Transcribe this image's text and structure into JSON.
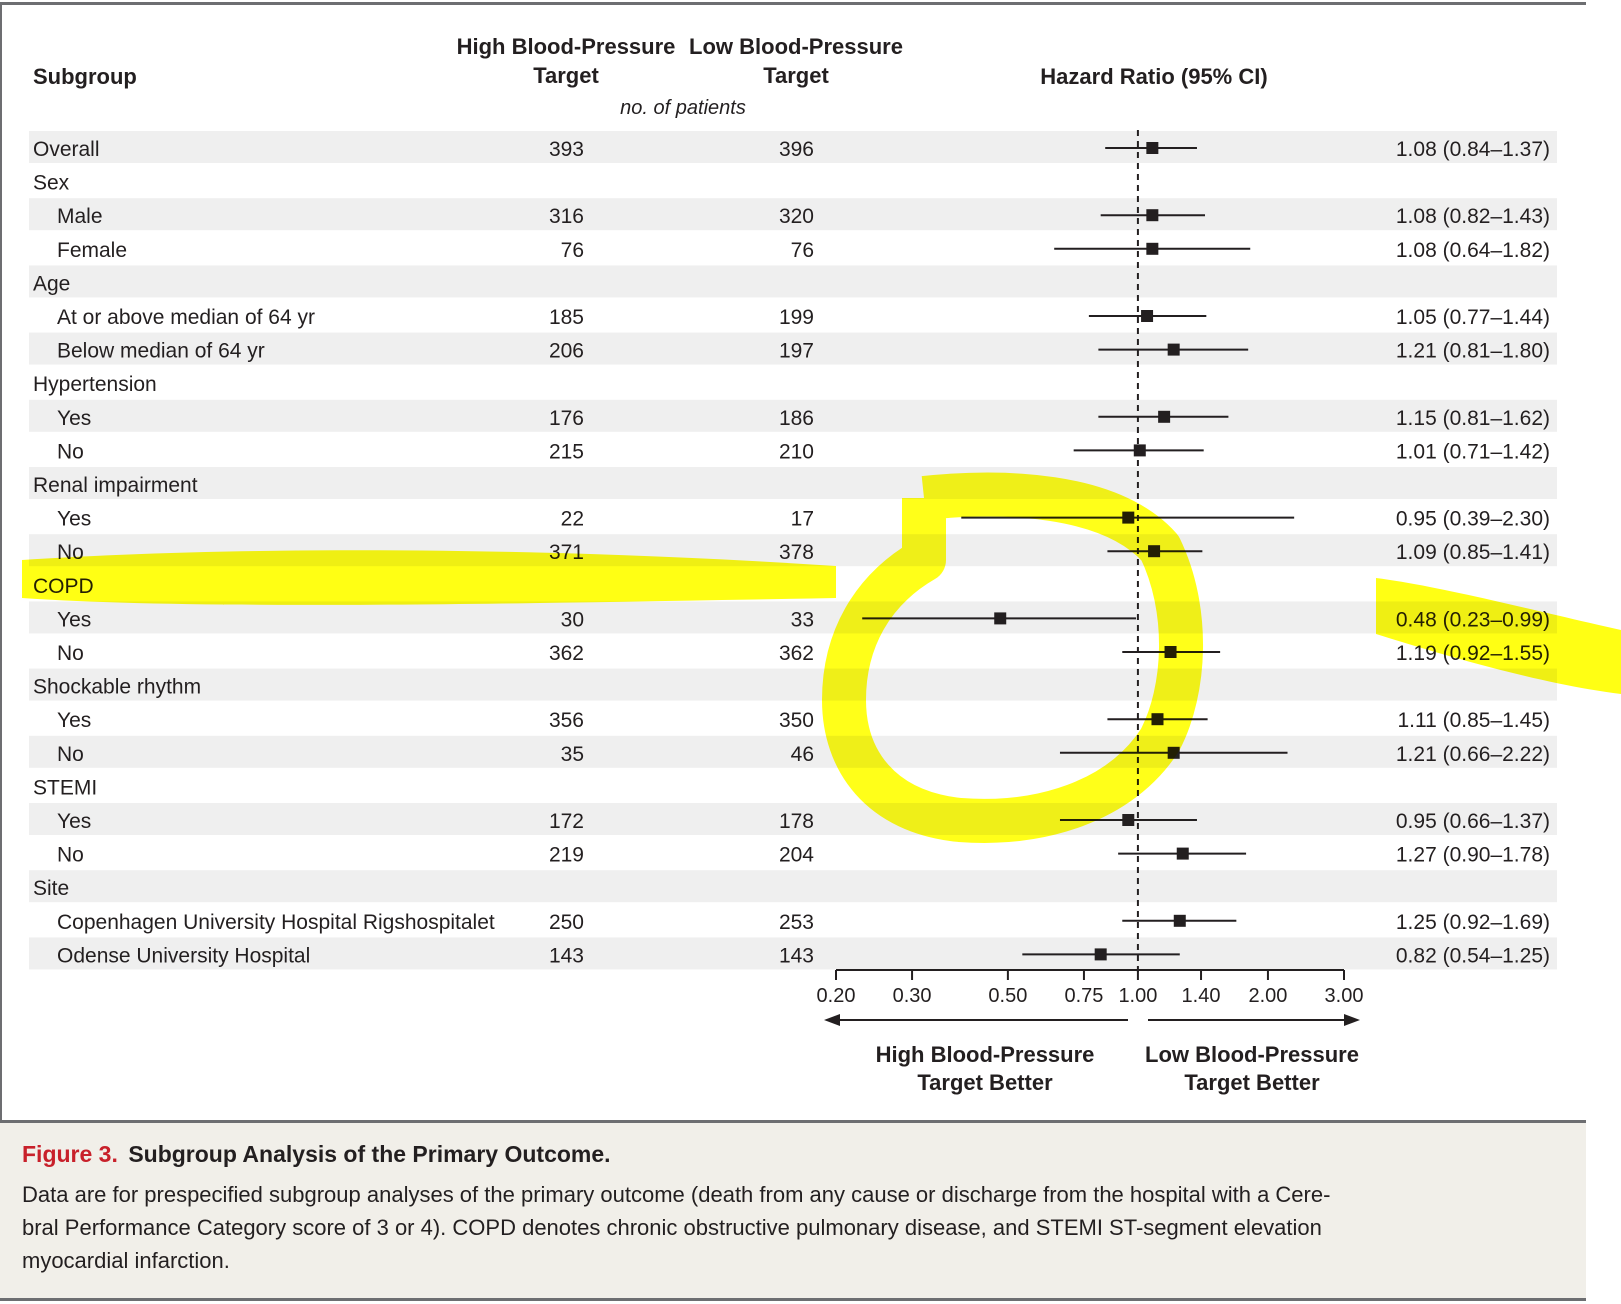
{
  "headers": {
    "subgroup": "Subgroup",
    "high_line1": "High Blood-Pressure",
    "high_line2": "Target",
    "low_line1": "Low Blood-Pressure",
    "low_line2": "Target",
    "patients_note": "no. of patients",
    "hr": "Hazard Ratio (95% CI)"
  },
  "chart_data": {
    "type": "forest",
    "x_scale": "log",
    "xlim": [
      0.2,
      3.0
    ],
    "reference_line": 1.0,
    "x_ticks": [
      "0.20",
      "0.30",
      "0.50",
      "0.75",
      "1.00",
      "1.40",
      "2.00",
      "3.00"
    ],
    "x_tick_values": [
      0.2,
      0.3,
      0.5,
      0.75,
      1.0,
      1.4,
      2.0,
      3.0
    ],
    "direction_left": [
      "High Blood-Pressure",
      "Target Better"
    ],
    "direction_right": [
      "Low Blood-Pressure",
      "Target Better"
    ],
    "rows": [
      {
        "label": "Overall",
        "indent": 0,
        "high_n": "393",
        "low_n": "396",
        "hr": 1.08,
        "lo": 0.84,
        "hi": 1.37,
        "ci_text": "1.08 (0.84–1.37)"
      },
      {
        "label": "Sex",
        "indent": 0
      },
      {
        "label": "Male",
        "indent": 1,
        "high_n": "316",
        "low_n": "320",
        "hr": 1.08,
        "lo": 0.82,
        "hi": 1.43,
        "ci_text": "1.08 (0.82–1.43)"
      },
      {
        "label": "Female",
        "indent": 1,
        "high_n": "76",
        "low_n": "76",
        "hr": 1.08,
        "lo": 0.64,
        "hi": 1.82,
        "ci_text": "1.08 (0.64–1.82)"
      },
      {
        "label": "Age",
        "indent": 0
      },
      {
        "label": "At or above median of 64 yr",
        "indent": 1,
        "high_n": "185",
        "low_n": "199",
        "hr": 1.05,
        "lo": 0.77,
        "hi": 1.44,
        "ci_text": "1.05 (0.77–1.44)"
      },
      {
        "label": "Below median of 64 yr",
        "indent": 1,
        "high_n": "206",
        "low_n": "197",
        "hr": 1.21,
        "lo": 0.81,
        "hi": 1.8,
        "ci_text": "1.21 (0.81–1.80)"
      },
      {
        "label": "Hypertension",
        "indent": 0
      },
      {
        "label": "Yes",
        "indent": 1,
        "high_n": "176",
        "low_n": "186",
        "hr": 1.15,
        "lo": 0.81,
        "hi": 1.62,
        "ci_text": "1.15 (0.81–1.62)"
      },
      {
        "label": "No",
        "indent": 1,
        "high_n": "215",
        "low_n": "210",
        "hr": 1.01,
        "lo": 0.71,
        "hi": 1.42,
        "ci_text": "1.01 (0.71–1.42)"
      },
      {
        "label": "Renal impairment",
        "indent": 0
      },
      {
        "label": "Yes",
        "indent": 1,
        "high_n": "22",
        "low_n": "17",
        "hr": 0.95,
        "lo": 0.39,
        "hi": 2.3,
        "ci_text": "0.95 (0.39–2.30)"
      },
      {
        "label": "No",
        "indent": 1,
        "high_n": "371",
        "low_n": "378",
        "hr": 1.09,
        "lo": 0.85,
        "hi": 1.41,
        "ci_text": "1.09 (0.85–1.41)"
      },
      {
        "label": "COPD",
        "indent": 0
      },
      {
        "label": "Yes",
        "indent": 1,
        "high_n": "30",
        "low_n": "33",
        "hr": 0.48,
        "lo": 0.23,
        "hi": 0.99,
        "ci_text": "0.48 (0.23–0.99)"
      },
      {
        "label": "No",
        "indent": 1,
        "high_n": "362",
        "low_n": "362",
        "hr": 1.19,
        "lo": 0.92,
        "hi": 1.55,
        "ci_text": "1.19 (0.92–1.55)"
      },
      {
        "label": "Shockable rhythm",
        "indent": 0
      },
      {
        "label": "Yes",
        "indent": 1,
        "high_n": "356",
        "low_n": "350",
        "hr": 1.11,
        "lo": 0.85,
        "hi": 1.45,
        "ci_text": "1.11 (0.85–1.45)"
      },
      {
        "label": "No",
        "indent": 1,
        "high_n": "35",
        "low_n": "46",
        "hr": 1.21,
        "lo": 0.66,
        "hi": 2.22,
        "ci_text": "1.21 (0.66–2.22)"
      },
      {
        "label": "STEMI",
        "indent": 0
      },
      {
        "label": "Yes",
        "indent": 1,
        "high_n": "172",
        "low_n": "178",
        "hr": 0.95,
        "lo": 0.66,
        "hi": 1.37,
        "ci_text": "0.95 (0.66–1.37)"
      },
      {
        "label": "No",
        "indent": 1,
        "high_n": "219",
        "low_n": "204",
        "hr": 1.27,
        "lo": 0.9,
        "hi": 1.78,
        "ci_text": "1.27 (0.90–1.78)"
      },
      {
        "label": "Site",
        "indent": 0
      },
      {
        "label": "Copenhagen University Hospital Rigshospitalet",
        "indent": 1,
        "high_n": "250",
        "low_n": "253",
        "hr": 1.25,
        "lo": 0.92,
        "hi": 1.69,
        "ci_text": "1.25 (0.92–1.69)"
      },
      {
        "label": "Odense University Hospital",
        "indent": 1,
        "high_n": "143",
        "low_n": "143",
        "hr": 0.82,
        "lo": 0.54,
        "hi": 1.25,
        "ci_text": "0.82 (0.54–1.25)"
      }
    ]
  },
  "caption": {
    "figure_label": "Figure 3.",
    "title": "Subgroup Analysis of the Primary Outcome.",
    "line1": "Data are for prespecified subgroup analyses of the primary outcome (death from any cause or discharge from the hospital with a Cere-",
    "line2": "bral Performance Category score of 3 or 4). COPD denotes chronic obstructive pulmonary disease, and STEMI ST-segment elevation",
    "line3": "myocardial infarction."
  },
  "colors": {
    "stripe": "#efefef",
    "caption_bg": "#f1efe9",
    "highlighter": "#ffff00",
    "figure_label": "#c8202a",
    "rule": "#6d6e71"
  }
}
